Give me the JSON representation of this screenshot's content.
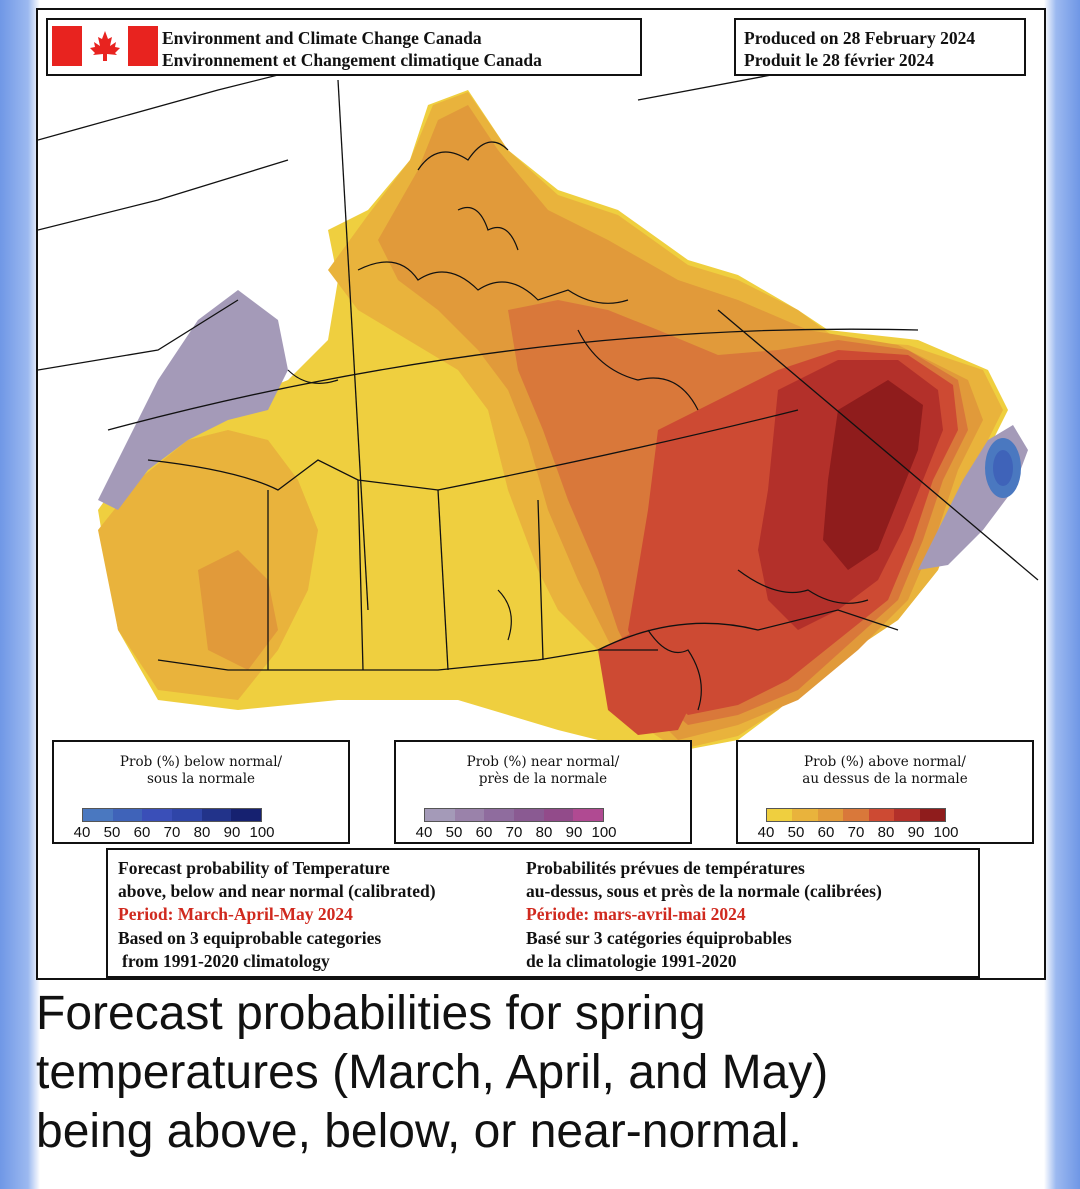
{
  "header": {
    "agency_en": "Environment and Climate Change Canada",
    "agency_fr": "Environnement et Changement climatique Canada"
  },
  "produced": {
    "en": "Produced on 28 February 2024",
    "fr": "Produit le 28 février 2024"
  },
  "legends": [
    {
      "title_en": "Prob (%) below normal/",
      "title_fr": "sous la normale",
      "ticks": [
        "40",
        "50",
        "60",
        "70",
        "80",
        "90",
        "100"
      ],
      "colors": [
        "#4a78c0",
        "#3f63b9",
        "#3a4fb8",
        "#2f45a8",
        "#22338a",
        "#162170"
      ]
    },
    {
      "title_en": "Prob (%) near normal/",
      "title_fr": "près de la normale",
      "ticks": [
        "40",
        "50",
        "60",
        "70",
        "80",
        "90",
        "100"
      ],
      "colors": [
        "#a49ab8",
        "#9a82aa",
        "#8f6c9e",
        "#8a5a92",
        "#924b8a",
        "#b04a92"
      ]
    },
    {
      "title_en": "Prob (%) above normal/",
      "title_fr": "au dessus de la normale",
      "ticks": [
        "40",
        "50",
        "60",
        "70",
        "80",
        "90",
        "100"
      ],
      "colors": [
        "#efcf3f",
        "#e9b33c",
        "#e19a3a",
        "#d9783a",
        "#cd4a33",
        "#b3302a",
        "#8f1c1c"
      ]
    }
  ],
  "info": {
    "en_line1": "Forecast probability of Temperature",
    "en_line2": "above, below and near normal (calibrated)",
    "en_period": "Period: March-April-May 2024",
    "en_line4": "Based on 3 equiprobable categories",
    "en_line5": "from 1991-2020 climatology",
    "fr_line1": "Probabilités prévues de températures",
    "fr_line2": "au-dessus, sous et près de la normale (calibrées)",
    "fr_period": "Période: mars-avril-mai 2024",
    "fr_line4": "Basé sur 3 catégories équiprobables",
    "fr_line5": "de la climatologie 1991-2020"
  },
  "caption": {
    "line1": "Forecast probabilities for spring",
    "line2": "temperatures (March, April, and May)",
    "line3": "being above, below, or near-normal."
  },
  "colors": {
    "flag_red": "#e8231f",
    "period_red": "#d02a1f",
    "above_40": "#efcf3f",
    "above_50": "#e9b33c",
    "above_60": "#e19a3a",
    "above_70": "#d9783a",
    "above_80": "#cd4a33",
    "above_90": "#b3302a",
    "above_100": "#8f1c1c",
    "near_40": "#a49ab8",
    "below_40": "#4a78c0"
  }
}
